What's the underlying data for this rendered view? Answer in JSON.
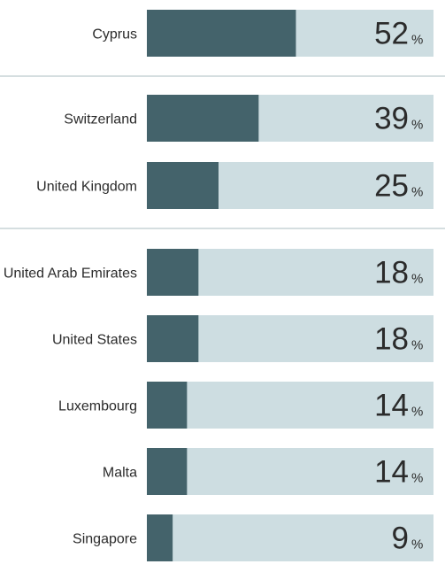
{
  "chart_data": {
    "type": "bar",
    "orientation": "horizontal",
    "categories": [
      "Cyprus",
      "Switzerland",
      "United Kingdom",
      "United Arab Emirates",
      "United States",
      "Luxembourg",
      "Malta",
      "Singapore"
    ],
    "values": [
      52,
      39,
      25,
      18,
      18,
      14,
      14,
      9
    ],
    "unit": "%",
    "groups": [
      [
        0
      ],
      [
        1,
        2
      ],
      [
        3,
        4,
        5,
        6,
        7
      ]
    ],
    "xlim": [
      0,
      100
    ],
    "colors": {
      "bar": "#44636b",
      "track": "#cddde1",
      "separator": "#d5dee0"
    },
    "grid": false,
    "legend": "none"
  }
}
